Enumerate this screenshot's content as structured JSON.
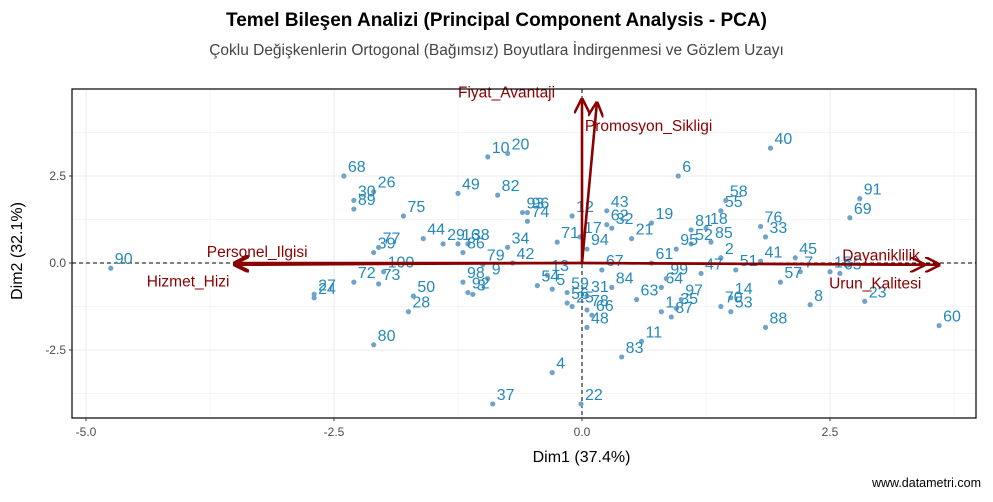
{
  "header": {
    "title": "Temel Bileşen Analizi (Principal Component Analysis - PCA)",
    "subtitle": "Çoklu Değişkenlerin Ortogonal (Bağımsız) Boyutlara İndirgenmesi ve Gözlem Uzayı"
  },
  "caption": "www.datametri.com",
  "colors": {
    "point": "#6fa3c9",
    "point_label": "#2489b9",
    "arrow": "#8b0000",
    "grid": "#ebebeb",
    "panel_border": "#000000"
  },
  "chart_data": {
    "type": "scatter",
    "subtype": "pca-biplot",
    "title": "Temel Bileşen Analizi (Principal Component Analysis - PCA)",
    "subtitle": "Çoklu Değişkenlerin Ortogonal (Bağımsız) Boyutlara İndirgenmesi ve Gözlem Uzayı",
    "xlabel": "Dim1 (37.4%)",
    "ylabel": "Dim2 (32.1%)",
    "xlim": [
      -5.14,
      3.97
    ],
    "ylim": [
      -4.5,
      4.94
    ],
    "x_ticks": [
      "-5.0",
      "-2.5",
      "0.0",
      "2.5"
    ],
    "y_ticks": [
      "-2.5",
      "0.0",
      "2.5"
    ],
    "grid": true,
    "legend": "none",
    "reference_lines": [
      "x=0 dashed",
      "y=0 dashed"
    ],
    "variables": [
      {
        "name": "Fiyat_Avantaji",
        "x": 0.0,
        "y": 4.7
      },
      {
        "name": "Promosyon_Sikligi",
        "x": 0.15,
        "y": 4.6
      },
      {
        "name": "Personel_Ilgisi",
        "x": -3.5,
        "y": 0.0
      },
      {
        "name": "Hizmet_Hizi",
        "x": -3.5,
        "y": -0.05
      },
      {
        "name": "Dayaniklilik",
        "x": 3.45,
        "y": -0.05
      },
      {
        "name": "Urun_Kalitesi",
        "x": 3.6,
        "y": -0.05
      }
    ],
    "points": [
      {
        "id": "1",
        "x": 0.8,
        "y": -1.4
      },
      {
        "id": "2",
        "x": 1.4,
        "y": 0.15
      },
      {
        "id": "3",
        "x": -1.1,
        "y": -0.9
      },
      {
        "id": "4",
        "x": -0.3,
        "y": -3.15
      },
      {
        "id": "5",
        "x": -0.3,
        "y": -0.75
      },
      {
        "id": "6",
        "x": 0.97,
        "y": 2.5
      },
      {
        "id": "7",
        "x": 2.2,
        "y": -0.25
      },
      {
        "id": "8",
        "x": 2.3,
        "y": -1.2
      },
      {
        "id": "9",
        "x": -0.95,
        "y": -0.45
      },
      {
        "id": "10",
        "x": -0.95,
        "y": 3.05
      },
      {
        "id": "11",
        "x": 0.6,
        "y": -2.25
      },
      {
        "id": "12",
        "x": -0.1,
        "y": 1.35
      },
      {
        "id": "13",
        "x": -0.35,
        "y": -0.35
      },
      {
        "id": "14",
        "x": 1.5,
        "y": -1.0
      },
      {
        "id": "15",
        "x": 2.5,
        "y": -0.25
      },
      {
        "id": "16",
        "x": -1.25,
        "y": 0.55
      },
      {
        "id": "17",
        "x": -0.02,
        "y": 0.75
      },
      {
        "id": "18",
        "x": 1.25,
        "y": 1.0
      },
      {
        "id": "19",
        "x": 0.7,
        "y": 1.15
      },
      {
        "id": "20",
        "x": -0.75,
        "y": 3.15
      },
      {
        "id": "21",
        "x": 0.5,
        "y": 0.7
      },
      {
        "id": "22",
        "x": -0.01,
        "y": -4.05
      },
      {
        "id": "23",
        "x": 2.85,
        "y": -1.1
      },
      {
        "id": "24",
        "x": -2.7,
        "y": -1.0
      },
      {
        "id": "25",
        "x": -0.1,
        "y": -1.25
      },
      {
        "id": "26",
        "x": -2.1,
        "y": 2.05
      },
      {
        "id": "27",
        "x": -2.7,
        "y": -0.9
      },
      {
        "id": "28",
        "x": -1.75,
        "y": -1.4
      },
      {
        "id": "29",
        "x": -1.4,
        "y": 0.55
      },
      {
        "id": "30",
        "x": -2.3,
        "y": 1.8
      },
      {
        "id": "31",
        "x": 0.05,
        "y": -0.95
      },
      {
        "id": "32",
        "x": 0.3,
        "y": 1.0
      },
      {
        "id": "33",
        "x": 1.85,
        "y": 0.75
      },
      {
        "id": "34",
        "x": -0.75,
        "y": 0.45
      },
      {
        "id": "35",
        "x": 0.95,
        "y": -1.3
      },
      {
        "id": "37",
        "x": -0.9,
        "y": -4.05
      },
      {
        "id": "38",
        "x": -1.15,
        "y": 0.55
      },
      {
        "id": "39",
        "x": -2.1,
        "y": 0.3
      },
      {
        "id": "40",
        "x": 1.9,
        "y": 3.3
      },
      {
        "id": "41",
        "x": 1.8,
        "y": 0.05
      },
      {
        "id": "42",
        "x": -0.7,
        "y": 0.0
      },
      {
        "id": "43",
        "x": 0.25,
        "y": 1.5
      },
      {
        "id": "44",
        "x": -1.6,
        "y": 0.7
      },
      {
        "id": "45",
        "x": 2.15,
        "y": 0.15
      },
      {
        "id": "47",
        "x": 1.2,
        "y": -0.3
      },
      {
        "id": "48",
        "x": 0.05,
        "y": -1.85
      },
      {
        "id": "49",
        "x": -1.25,
        "y": 2.0
      },
      {
        "id": "50",
        "x": -1.7,
        "y": -0.95
      },
      {
        "id": "51",
        "x": 1.55,
        "y": -0.2
      },
      {
        "id": "52",
        "x": 1.1,
        "y": 0.55
      },
      {
        "id": "53",
        "x": 1.5,
        "y": -1.4
      },
      {
        "id": "54",
        "x": -0.45,
        "y": -0.65
      },
      {
        "id": "55",
        "x": 1.4,
        "y": 1.5
      },
      {
        "id": "56",
        "x": -0.15,
        "y": -1.15
      },
      {
        "id": "57",
        "x": 2.0,
        "y": -0.55
      },
      {
        "id": "58",
        "x": 1.45,
        "y": 1.8
      },
      {
        "id": "59",
        "x": -0.15,
        "y": -0.85
      },
      {
        "id": "60",
        "x": 3.6,
        "y": -1.8
      },
      {
        "id": "61",
        "x": 0.7,
        "y": 0.0
      },
      {
        "id": "62",
        "x": 0.25,
        "y": 1.1
      },
      {
        "id": "63",
        "x": 0.55,
        "y": -1.05
      },
      {
        "id": "64",
        "x": 0.8,
        "y": -0.7
      },
      {
        "id": "65",
        "x": 2.6,
        "y": -0.3
      },
      {
        "id": "66",
        "x": 0.1,
        "y": -1.5
      },
      {
        "id": "67",
        "x": 0.2,
        "y": -0.2
      },
      {
        "id": "68",
        "x": -2.4,
        "y": 2.5
      },
      {
        "id": "69",
        "x": 2.7,
        "y": 1.3
      },
      {
        "id": "70",
        "x": 1.4,
        "y": -1.25
      },
      {
        "id": "71",
        "x": -0.25,
        "y": 0.6
      },
      {
        "id": "72",
        "x": -2.3,
        "y": -0.55
      },
      {
        "id": "73",
        "x": -2.05,
        "y": -0.6
      },
      {
        "id": "74",
        "x": -0.55,
        "y": 1.2
      },
      {
        "id": "75",
        "x": -1.8,
        "y": 1.35
      },
      {
        "id": "76",
        "x": 1.8,
        "y": 1.05
      },
      {
        "id": "77",
        "x": -2.05,
        "y": 0.45
      },
      {
        "id": "78",
        "x": 0.05,
        "y": -1.35
      },
      {
        "id": "79",
        "x": -1.0,
        "y": -0.05
      },
      {
        "id": "80",
        "x": -2.1,
        "y": -2.35
      },
      {
        "id": "81",
        "x": 1.1,
        "y": 0.95
      },
      {
        "id": "82",
        "x": -0.85,
        "y": 1.95
      },
      {
        "id": "83",
        "x": 0.4,
        "y": -2.7
      },
      {
        "id": "84",
        "x": 0.3,
        "y": -0.7
      },
      {
        "id": "85",
        "x": 1.3,
        "y": 0.6
      },
      {
        "id": "86",
        "x": -1.2,
        "y": 0.3
      },
      {
        "id": "87",
        "x": 0.9,
        "y": -1.55
      },
      {
        "id": "88",
        "x": 1.85,
        "y": -1.85
      },
      {
        "id": "89",
        "x": -2.3,
        "y": 1.55
      },
      {
        "id": "90",
        "x": -4.75,
        "y": -0.15
      },
      {
        "id": "91",
        "x": 2.8,
        "y": 1.85
      },
      {
        "id": "92",
        "x": -1.15,
        "y": -0.85
      },
      {
        "id": "93",
        "x": -0.6,
        "y": 1.45
      },
      {
        "id": "94",
        "x": 0.05,
        "y": 0.4
      },
      {
        "id": "95",
        "x": 0.95,
        "y": 0.4
      },
      {
        "id": "96",
        "x": -0.55,
        "y": 1.45
      },
      {
        "id": "97",
        "x": 1.0,
        "y": -1.05
      },
      {
        "id": "98",
        "x": -1.2,
        "y": -0.55
      },
      {
        "id": "99",
        "x": 0.85,
        "y": -0.45
      },
      {
        "id": "100",
        "x": -2.0,
        "y": -0.25
      }
    ]
  }
}
